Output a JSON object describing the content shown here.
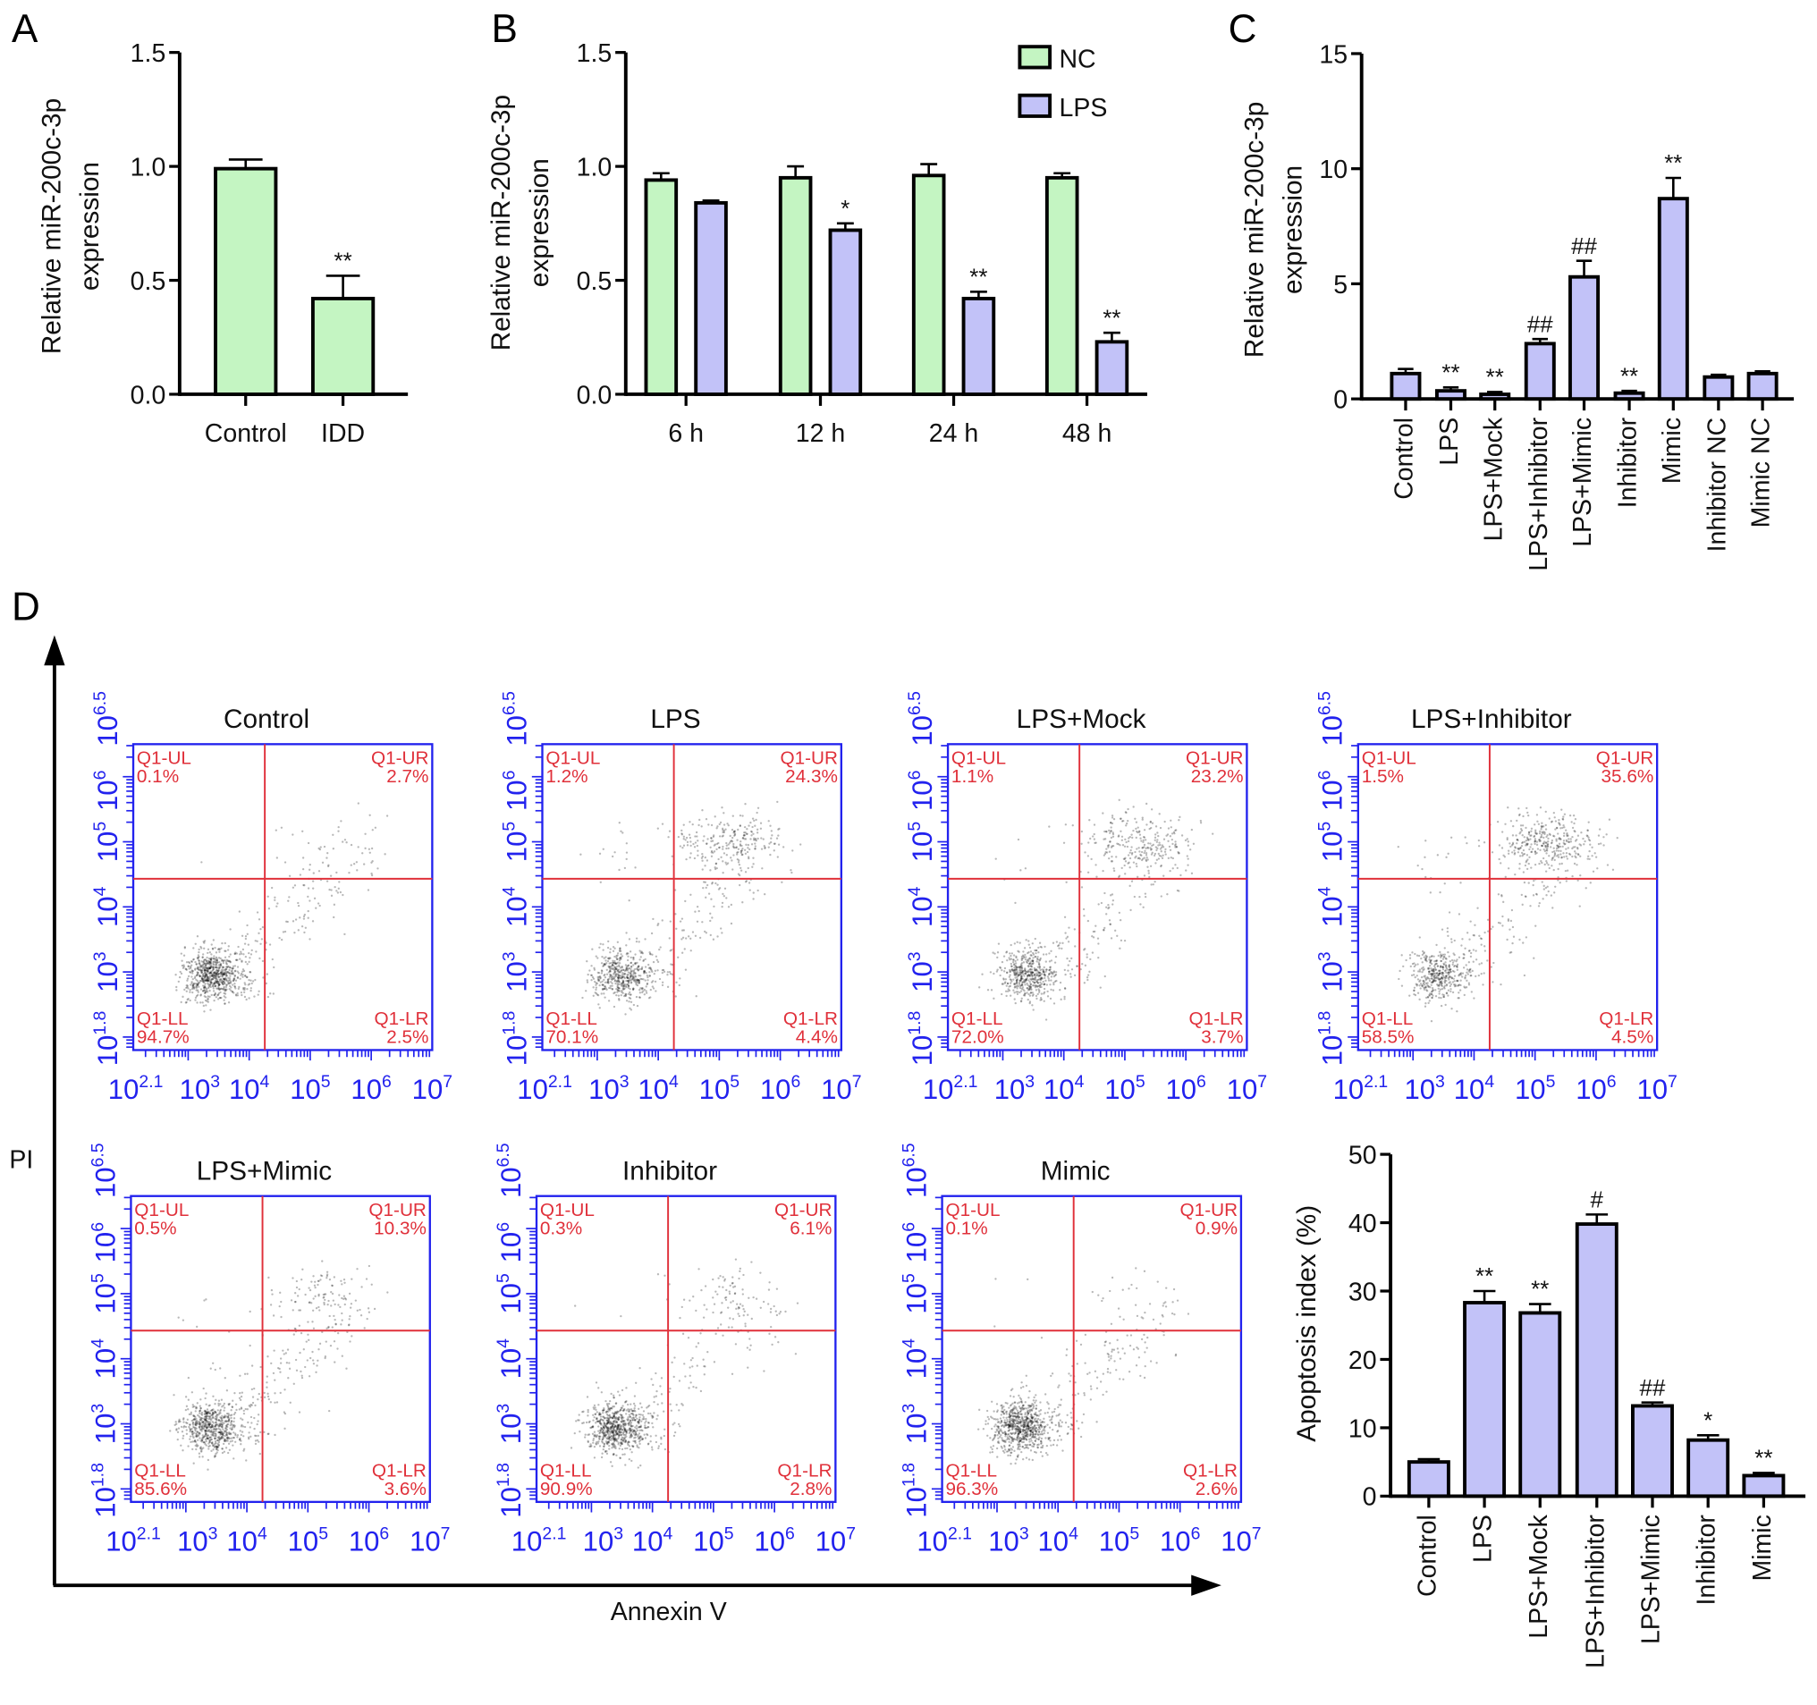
{
  "panel_letters": [
    "A",
    "B",
    "C",
    "D"
  ],
  "colors": {
    "green": "#c4f5c2",
    "purple": "#c2c2f8",
    "flow_axis": "#2222ee",
    "quadrant": "#e0303a"
  },
  "chart_data": [
    {
      "id": "A",
      "type": "bar",
      "ylabel": [
        "Relative miR-200c-3p",
        "expression"
      ],
      "ylim": [
        0,
        1.5
      ],
      "yticks": [
        "0.0",
        "0.5",
        "1.0",
        "1.5"
      ],
      "ytick_values": [
        0,
        0.5,
        1.0,
        1.5
      ],
      "categories": [
        "Control",
        "IDD"
      ],
      "series": [
        {
          "values": [
            0.99,
            0.42
          ],
          "errors": [
            0.04,
            0.1
          ],
          "annotations": [
            "",
            "**"
          ],
          "color": "#c4f5c2"
        }
      ]
    },
    {
      "id": "B",
      "type": "bar",
      "ylabel": [
        "Relative miR-200c-3p",
        "expression"
      ],
      "ylim": [
        0,
        1.5
      ],
      "yticks": [
        "0.0",
        "0.5",
        "1.0",
        "1.5"
      ],
      "ytick_values": [
        0,
        0.5,
        1.0,
        1.5
      ],
      "categories": [
        "6 h",
        "12 h",
        "24 h",
        "48 h"
      ],
      "legend": "top-right",
      "series": [
        {
          "name": "NC",
          "values": [
            0.94,
            0.95,
            0.96,
            0.95
          ],
          "errors": [
            0.03,
            0.05,
            0.05,
            0.02
          ],
          "annotations": [
            "",
            "",
            "",
            ""
          ],
          "color": "#c4f5c2"
        },
        {
          "name": "LPS",
          "values": [
            0.84,
            0.72,
            0.42,
            0.23
          ],
          "errors": [
            0.01,
            0.03,
            0.03,
            0.04
          ],
          "annotations": [
            "",
            "*",
            "**",
            "**"
          ],
          "color": "#c2c2f8"
        }
      ]
    },
    {
      "id": "C",
      "type": "bar",
      "ylabel": [
        "Relative miR-200c-3p",
        "expression"
      ],
      "ylim": [
        0,
        15
      ],
      "yticks": [
        "0",
        "5",
        "10",
        "15"
      ],
      "ytick_values": [
        0,
        5,
        10,
        15
      ],
      "categories": [
        "Control",
        "LPS",
        "LPS+Mock",
        "LPS+Inhibitor",
        "LPS+Mimic",
        "Inhibitor",
        "Mimic",
        "Inhibitor NC",
        "Mimic NC"
      ],
      "series": [
        {
          "values": [
            1.1,
            0.35,
            0.2,
            2.4,
            5.3,
            0.25,
            8.7,
            0.95,
            1.1
          ],
          "errors": [
            0.2,
            0.15,
            0.1,
            0.2,
            0.7,
            0.1,
            0.9,
            0.1,
            0.1
          ],
          "annotations": [
            "",
            "**",
            "**",
            "##",
            "##",
            "**",
            "**",
            "",
            ""
          ],
          "color": "#c2c2f8"
        }
      ]
    },
    {
      "id": "D-flow",
      "type": "scatter",
      "xlabel": "Annexin V",
      "ylabel": "PI",
      "log_base": "10",
      "x_tick_exponents": [
        "2.1",
        "3",
        "4",
        "5",
        "6",
        "7"
      ],
      "y_tick_exponents": [
        "1.8",
        "3",
        "4",
        "5",
        "6",
        "6.5"
      ],
      "xlim_log10": [
        2.1,
        7
      ],
      "ylim_log10": [
        1.8,
        6.5
      ],
      "quadrant_labels": {
        "UL": "Q1-UL",
        "UR": "Q1-UR",
        "LL": "Q1-LL",
        "LR": "Q1-LR"
      },
      "plots": [
        {
          "title": "Control",
          "UL": "0.1%",
          "UR": "2.7%",
          "LL": "94.7%",
          "LR": "2.5%"
        },
        {
          "title": "LPS",
          "UL": "1.2%",
          "UR": "24.3%",
          "LL": "70.1%",
          "LR": "4.4%"
        },
        {
          "title": "LPS+Mock",
          "UL": "1.1%",
          "UR": "23.2%",
          "LL": "72.0%",
          "LR": "3.7%"
        },
        {
          "title": "LPS+Inhibitor",
          "UL": "1.5%",
          "UR": "35.6%",
          "LL": "58.5%",
          "LR": "4.5%"
        },
        {
          "title": "LPS+Mimic",
          "UL": "0.5%",
          "UR": "10.3%",
          "LL": "85.6%",
          "LR": "3.6%"
        },
        {
          "title": "Inhibitor",
          "UL": "0.3%",
          "UR": "6.1%",
          "LL": "90.9%",
          "LR": "2.8%"
        },
        {
          "title": "Mimic",
          "UL": "0.1%",
          "UR": "0.9%",
          "LL": "96.3%",
          "LR": "2.6%"
        }
      ]
    },
    {
      "id": "D-bar",
      "type": "bar",
      "ylabel": [
        "Apoptosis index (%)"
      ],
      "ylim": [
        0,
        50
      ],
      "yticks": [
        "0",
        "10",
        "20",
        "30",
        "40",
        "50"
      ],
      "ytick_values": [
        0,
        10,
        20,
        30,
        40,
        50
      ],
      "categories": [
        "Control",
        "LPS",
        "LPS+Mock",
        "LPS+Inhibitor",
        "LPS+Mimic",
        "Inhibitor",
        "Mimic"
      ],
      "series": [
        {
          "values": [
            5.0,
            28.3,
            26.8,
            39.8,
            13.2,
            8.2,
            3.0
          ],
          "errors": [
            0.4,
            1.7,
            1.3,
            1.4,
            0.5,
            0.7,
            0.4
          ],
          "annotations": [
            "",
            "**",
            "**",
            "#",
            "##",
            "*",
            "**"
          ],
          "color": "#c2c2f8"
        }
      ]
    }
  ]
}
